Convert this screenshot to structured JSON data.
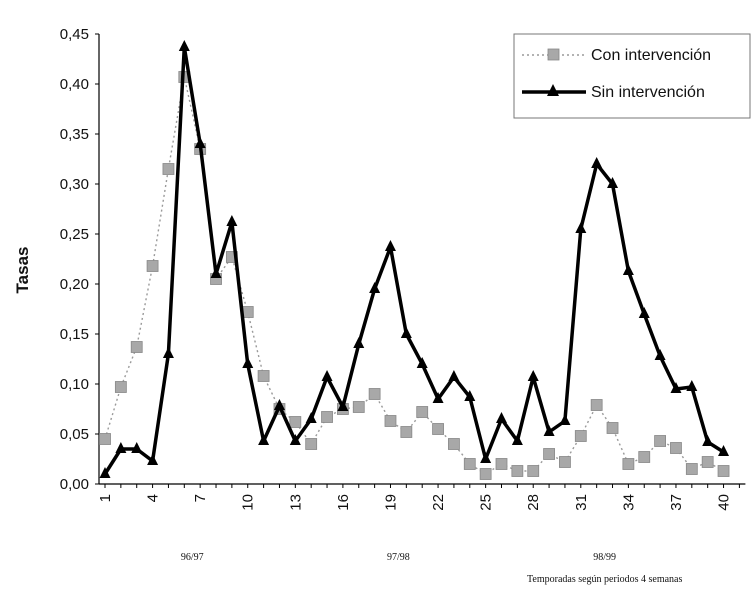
{
  "chart_data": {
    "type": "line",
    "title": "",
    "ylabel": "Tasas",
    "xlabel": "Temporadas según periodos 4 semanas",
    "ylim": [
      0,
      0.45
    ],
    "yticks": [
      0,
      0.05,
      0.1,
      0.15,
      0.2,
      0.25,
      0.3,
      0.35,
      0.4,
      0.45
    ],
    "ytick_labels": [
      "0,00",
      "0,05",
      "0,10",
      "0,15",
      "0,20",
      "0,25",
      "0,30",
      "0,35",
      "0,40",
      "0,45"
    ],
    "xlim": [
      1,
      41
    ],
    "xticks": [
      1,
      4,
      7,
      10,
      13,
      16,
      19,
      22,
      25,
      28,
      31,
      34,
      37,
      40
    ],
    "season_labels": [
      {
        "text": "96/97",
        "x": 6.5
      },
      {
        "text": "97/98",
        "x": 19.5
      },
      {
        "text": "98/99",
        "x": 32.5
      }
    ],
    "x": [
      1,
      2,
      3,
      4,
      5,
      6,
      7,
      8,
      9,
      10,
      11,
      12,
      13,
      14,
      15,
      16,
      17,
      18,
      19,
      20,
      21,
      22,
      23,
      24,
      25,
      26,
      27,
      28,
      29,
      30,
      31,
      32,
      33,
      34,
      35,
      36,
      37,
      38,
      39,
      40,
      41
    ],
    "legend_position": "top-right",
    "grid": false,
    "series": [
      {
        "name": "Con intervención",
        "style": "dotted-square",
        "color": "#9a9a9a",
        "values": [
          0.045,
          0.097,
          0.137,
          0.218,
          0.315,
          0.407,
          0.335,
          0.205,
          0.227,
          0.172,
          0.108,
          0.075,
          0.062,
          0.04,
          0.067,
          0.075,
          0.077,
          0.09,
          0.063,
          0.052,
          0.072,
          0.055,
          0.04,
          0.02,
          0.01,
          0.02,
          0.013,
          0.013,
          0.03,
          0.022,
          0.048,
          0.079,
          0.056,
          0.02,
          0.027,
          0.043,
          0.036,
          0.015,
          0.022,
          0.013,
          null
        ]
      },
      {
        "name": "Sin intervención",
        "style": "solid-triangle",
        "color": "#000000",
        "values": [
          0.01,
          0.035,
          0.035,
          0.023,
          0.13,
          0.437,
          0.34,
          0.21,
          0.262,
          0.12,
          0.043,
          0.078,
          0.043,
          0.065,
          0.107,
          0.077,
          0.14,
          0.195,
          0.237,
          0.15,
          0.12,
          0.085,
          0.107,
          0.087,
          0.025,
          0.065,
          0.043,
          0.107,
          0.052,
          0.063,
          0.255,
          0.32,
          0.3,
          0.213,
          0.17,
          0.128,
          0.095,
          0.097,
          0.042,
          0.032,
          null
        ]
      }
    ]
  }
}
